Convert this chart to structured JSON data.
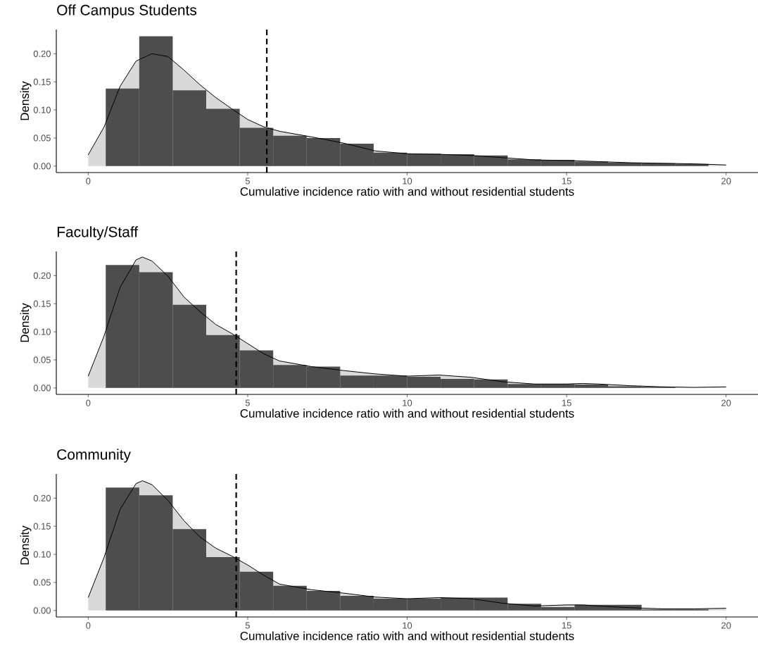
{
  "chart_data": [
    {
      "type": "histogram",
      "title": "Off Campus Students",
      "xlabel": "Cumulative incidence ratio with and without residential students",
      "ylabel": "Density",
      "bins": [
        0.55,
        1.6,
        2.65,
        3.7,
        4.75,
        5.8,
        6.85,
        7.9,
        8.95,
        10.0,
        11.05,
        12.1,
        13.15,
        14.2,
        15.25,
        16.3,
        17.35,
        18.4,
        19.45
      ],
      "values": [
        0.138,
        0.231,
        0.135,
        0.102,
        0.068,
        0.054,
        0.05,
        0.04,
        0.024,
        0.022,
        0.021,
        0.019,
        0.012,
        0.011,
        0.008,
        0.006,
        0.005,
        0.004
      ],
      "color": "#4d4d4d",
      "series": [
        {
          "type": "area",
          "color": "#d9d9d9",
          "x": [
            0,
            0.5,
            1,
            1.5,
            2,
            2.5,
            3,
            3.5,
            4,
            4.5,
            5,
            5.5,
            6,
            7,
            8,
            9,
            10,
            11,
            12,
            13,
            14,
            15,
            16,
            17,
            18,
            19,
            20
          ],
          "values": [
            0.02,
            0.07,
            0.142,
            0.187,
            0.2,
            0.195,
            0.171,
            0.145,
            0.122,
            0.102,
            0.083,
            0.07,
            0.062,
            0.052,
            0.041,
            0.027,
            0.022,
            0.021,
            0.019,
            0.015,
            0.011,
            0.01,
            0.008,
            0.006,
            0.005,
            0.004,
            0.002
          ]
        }
      ],
      "ref_lines": [
        {
          "axis": "x",
          "value": 5.6,
          "color": "#000000",
          "line_style": "dashed"
        }
      ],
      "xlim": [
        -1,
        21
      ],
      "ylim": [
        -0.0115,
        0.243
      ],
      "xticks": [
        0,
        5,
        10,
        15,
        20
      ],
      "yticks": [
        {
          "value": 0,
          "label": "0.00"
        },
        {
          "value": 0.05,
          "label": "0.05"
        },
        {
          "value": 0.1,
          "label": "0.10"
        },
        {
          "value": 0.15,
          "label": "0.15"
        },
        {
          "value": 0.2,
          "label": "0.20"
        }
      ]
    },
    {
      "type": "histogram",
      "title": "Faculty/Staff",
      "xlabel": "Cumulative incidence ratio with and without residential students",
      "ylabel": "Density",
      "bins": [
        0.55,
        1.6,
        2.65,
        3.7,
        4.75,
        5.8,
        6.85,
        7.9,
        8.95,
        10.0,
        11.05,
        12.1,
        13.15,
        14.2,
        15.25,
        16.3,
        17.35,
        18.4,
        19.45
      ],
      "values": [
        0.219,
        0.206,
        0.148,
        0.094,
        0.067,
        0.041,
        0.038,
        0.022,
        0.022,
        0.02,
        0.016,
        0.015,
        0.007,
        0.007,
        0.006,
        0.003,
        0.002,
        0
      ],
      "color": "#4d4d4d",
      "series": [
        {
          "type": "area",
          "color": "#d9d9d9",
          "x": [
            0,
            0.5,
            1,
            1.5,
            1.7,
            2,
            2.5,
            3,
            3.5,
            4,
            4.5,
            5,
            5.5,
            6,
            7,
            8,
            9,
            10,
            11,
            12,
            13,
            14,
            15,
            15.5,
            16,
            17,
            18,
            19,
            20
          ],
          "values": [
            0.021,
            0.093,
            0.179,
            0.228,
            0.233,
            0.226,
            0.199,
            0.162,
            0.136,
            0.113,
            0.097,
            0.079,
            0.061,
            0.048,
            0.038,
            0.031,
            0.025,
            0.021,
            0.023,
            0.019,
            0.011,
            0.007,
            0.007,
            0.008,
            0.007,
            0.004,
            0.002,
            0.001,
            0.002
          ]
        }
      ],
      "ref_lines": [
        {
          "axis": "x",
          "value": 4.64,
          "color": "#000000",
          "line_style": "dashed"
        }
      ],
      "xlim": [
        -1,
        21
      ],
      "ylim": [
        -0.0115,
        0.243
      ],
      "xticks": [
        0,
        5,
        10,
        15,
        20
      ],
      "yticks": [
        {
          "value": 0,
          "label": "0.00"
        },
        {
          "value": 0.05,
          "label": "0.05"
        },
        {
          "value": 0.1,
          "label": "0.10"
        },
        {
          "value": 0.15,
          "label": "0.15"
        },
        {
          "value": 0.2,
          "label": "0.20"
        }
      ]
    },
    {
      "type": "histogram",
      "title": "Community",
      "xlabel": "Cumulative incidence ratio with and without residential students",
      "ylabel": "Density",
      "bins": [
        0.55,
        1.6,
        2.65,
        3.7,
        4.75,
        5.8,
        6.85,
        7.9,
        8.95,
        10.0,
        11.05,
        12.1,
        13.15,
        14.2,
        15.25,
        16.3,
        17.35,
        18.4,
        19.45
      ],
      "values": [
        0.219,
        0.205,
        0.145,
        0.095,
        0.069,
        0.044,
        0.035,
        0.026,
        0.021,
        0.021,
        0.023,
        0.023,
        0.012,
        0.006,
        0.01,
        0.01,
        0.002,
        0.002
      ],
      "color": "#4d4d4d",
      "series": [
        {
          "type": "area",
          "color": "#d9d9d9",
          "x": [
            0,
            0.5,
            1,
            1.5,
            1.7,
            2,
            2.5,
            3,
            3.5,
            4,
            4.5,
            5,
            5.5,
            6,
            7,
            8,
            9,
            10,
            11,
            12,
            13,
            14,
            15,
            15.5,
            16,
            17,
            18,
            19,
            20
          ],
          "values": [
            0.023,
            0.095,
            0.18,
            0.226,
            0.231,
            0.224,
            0.196,
            0.16,
            0.131,
            0.111,
            0.097,
            0.081,
            0.063,
            0.047,
            0.037,
            0.031,
            0.024,
            0.021,
            0.023,
            0.021,
            0.013,
            0.008,
            0.01,
            0.01,
            0.008,
            0.005,
            0.003,
            0.003,
            0.004
          ]
        }
      ],
      "ref_lines": [
        {
          "axis": "x",
          "value": 4.64,
          "color": "#000000",
          "line_style": "dashed"
        }
      ],
      "xlim": [
        -1,
        21
      ],
      "ylim": [
        -0.0115,
        0.243
      ],
      "xticks": [
        0,
        5,
        10,
        15,
        20
      ],
      "yticks": [
        {
          "value": 0,
          "label": "0.00"
        },
        {
          "value": 0.05,
          "label": "0.05"
        },
        {
          "value": 0.1,
          "label": "0.10"
        },
        {
          "value": 0.15,
          "label": "0.15"
        },
        {
          "value": 0.2,
          "label": "0.20"
        }
      ]
    }
  ]
}
